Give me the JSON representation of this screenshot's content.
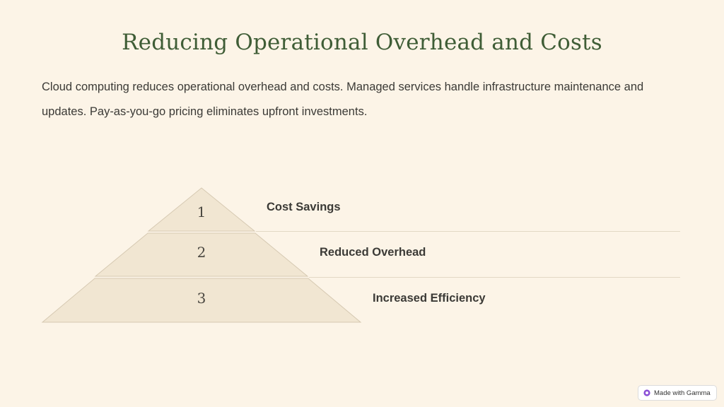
{
  "title": "Reducing Operational Overhead and Costs",
  "intro": "Cloud computing reduces operational overhead and costs. Managed services handle infrastructure maintenance and updates. Pay-as-you-go pricing eliminates upfront investments.",
  "tiers": [
    {
      "number": "1",
      "label": "Cost Savings"
    },
    {
      "number": "2",
      "label": "Reduced Overhead"
    },
    {
      "number": "3",
      "label": "Increased Efficiency"
    }
  ],
  "colors": {
    "background": "#fcf4e7",
    "tier_fill": "#f1e6d2",
    "title": "#3f5d36",
    "divider": "#e2d8c4"
  },
  "badge": {
    "icon": "gamma-logo-icon",
    "label": "Made with Gamma"
  }
}
